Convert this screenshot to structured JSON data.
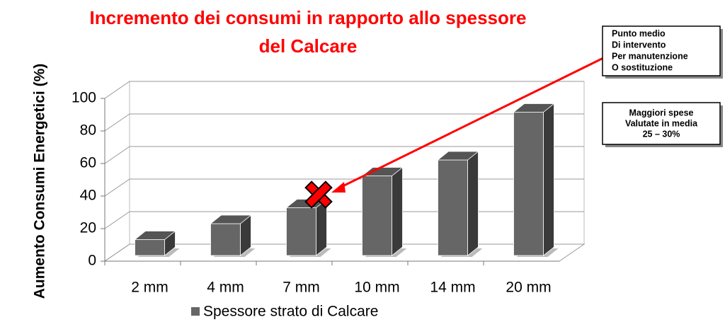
{
  "chart_data": {
    "type": "bar3d",
    "title": [
      "Incremento dei consumi in rapporto allo spessore",
      "del Calcare"
    ],
    "y_label": "Aumento Consumi Energetici (%)",
    "categories": [
      "2 mm",
      "4 mm",
      "7 mm",
      "10 mm",
      "14 mm",
      "20 mm"
    ],
    "series": [
      {
        "name": "Spessore strato di Calcare",
        "color": "#666666",
        "values": [
          10,
          20,
          30,
          50,
          60,
          90
        ]
      }
    ],
    "ylim": [
      0,
      100
    ],
    "yticks": [
      0,
      20,
      40,
      60,
      80,
      100
    ],
    "grid": true,
    "annotations": [
      [
        "Punto medio",
        "Di intervento",
        "Per manutenzione",
        "O sostituzione"
      ],
      [
        "Maggiori spese",
        "Valutate in media",
        "25 – 30%"
      ]
    ]
  }
}
